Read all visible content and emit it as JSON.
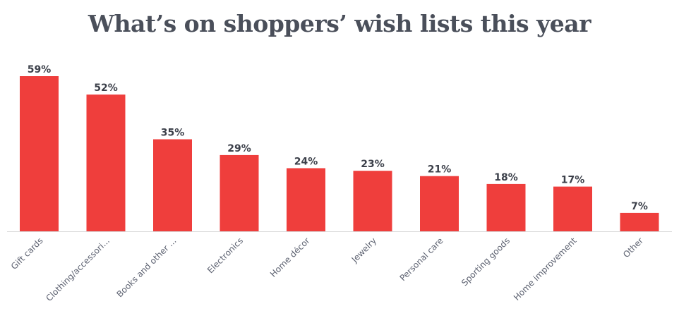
{
  "chart_data": {
    "type": "bar",
    "title": "What’s on shoppers’ wish lists this year",
    "xlabel": "",
    "ylabel": "",
    "ylim": [
      0,
      59
    ],
    "grid": false,
    "categories": [
      "Gift cards",
      "Clothing/accessori...",
      "Books and other ...",
      "Electronics",
      "Home décor",
      "Jewelry",
      "Personal care",
      "Sporting goods",
      "Home improvement",
      "Other"
    ],
    "values": [
      59,
      52,
      35,
      29,
      24,
      23,
      21,
      18,
      17,
      7
    ],
    "value_labels": [
      "59%",
      "52%",
      "35%",
      "29%",
      "24%",
      "23%",
      "21%",
      "18%",
      "17%",
      "7%"
    ],
    "colors": {
      "bar": "#ef3e3c",
      "title": "#4a4f5a",
      "labels": "#3c404a"
    }
  }
}
